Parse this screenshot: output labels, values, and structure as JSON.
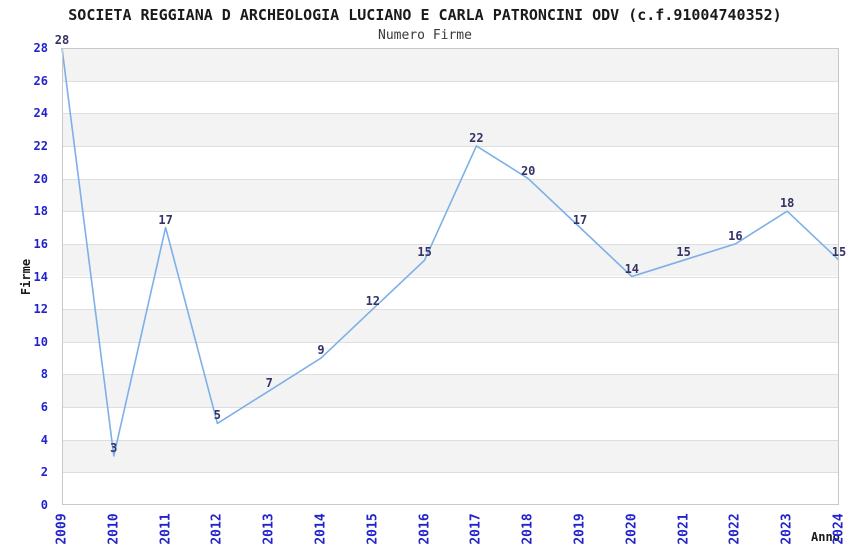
{
  "header": {
    "title": "SOCIETA REGGIANA D ARCHEOLOGIA LUCIANO E CARLA PATRONCINI ODV (c.f.91004740352)",
    "subtitle": "Numero Firme"
  },
  "chart_data": {
    "type": "line",
    "title": "SOCIETA REGGIANA D ARCHEOLOGIA LUCIANO E CARLA PATRONCINI ODV (c.f.91004740352)",
    "subtitle": "Numero Firme",
    "xlabel": "Anno",
    "ylabel": "Firme",
    "categories": [
      "2009",
      "2010",
      "2011",
      "2012",
      "2013",
      "2014",
      "2015",
      "2016",
      "2017",
      "2018",
      "2019",
      "2020",
      "2021",
      "2022",
      "2023",
      "2024"
    ],
    "values": [
      28,
      3,
      17,
      5,
      7,
      9,
      12,
      15,
      22,
      20,
      17,
      14,
      15,
      16,
      18,
      15
    ],
    "ylim": [
      0,
      28
    ],
    "ytick_step": 2,
    "ytick_labels": [
      "0",
      "2",
      "4",
      "6",
      "8",
      "10",
      "12",
      "14",
      "16",
      "18",
      "20",
      "22",
      "24",
      "26",
      "28"
    ],
    "legend": "none",
    "grid": "horizontal-alternating-bands",
    "colors": {
      "line": "#7db0e8",
      "tick_label": "#2323cc",
      "data_label": "#333366",
      "band": "#f3f3f3",
      "gridline": "#dedede",
      "plot_border": "#c9c9c9",
      "title": "#1a1a1a",
      "subtitle": "#3a3a3a"
    }
  }
}
